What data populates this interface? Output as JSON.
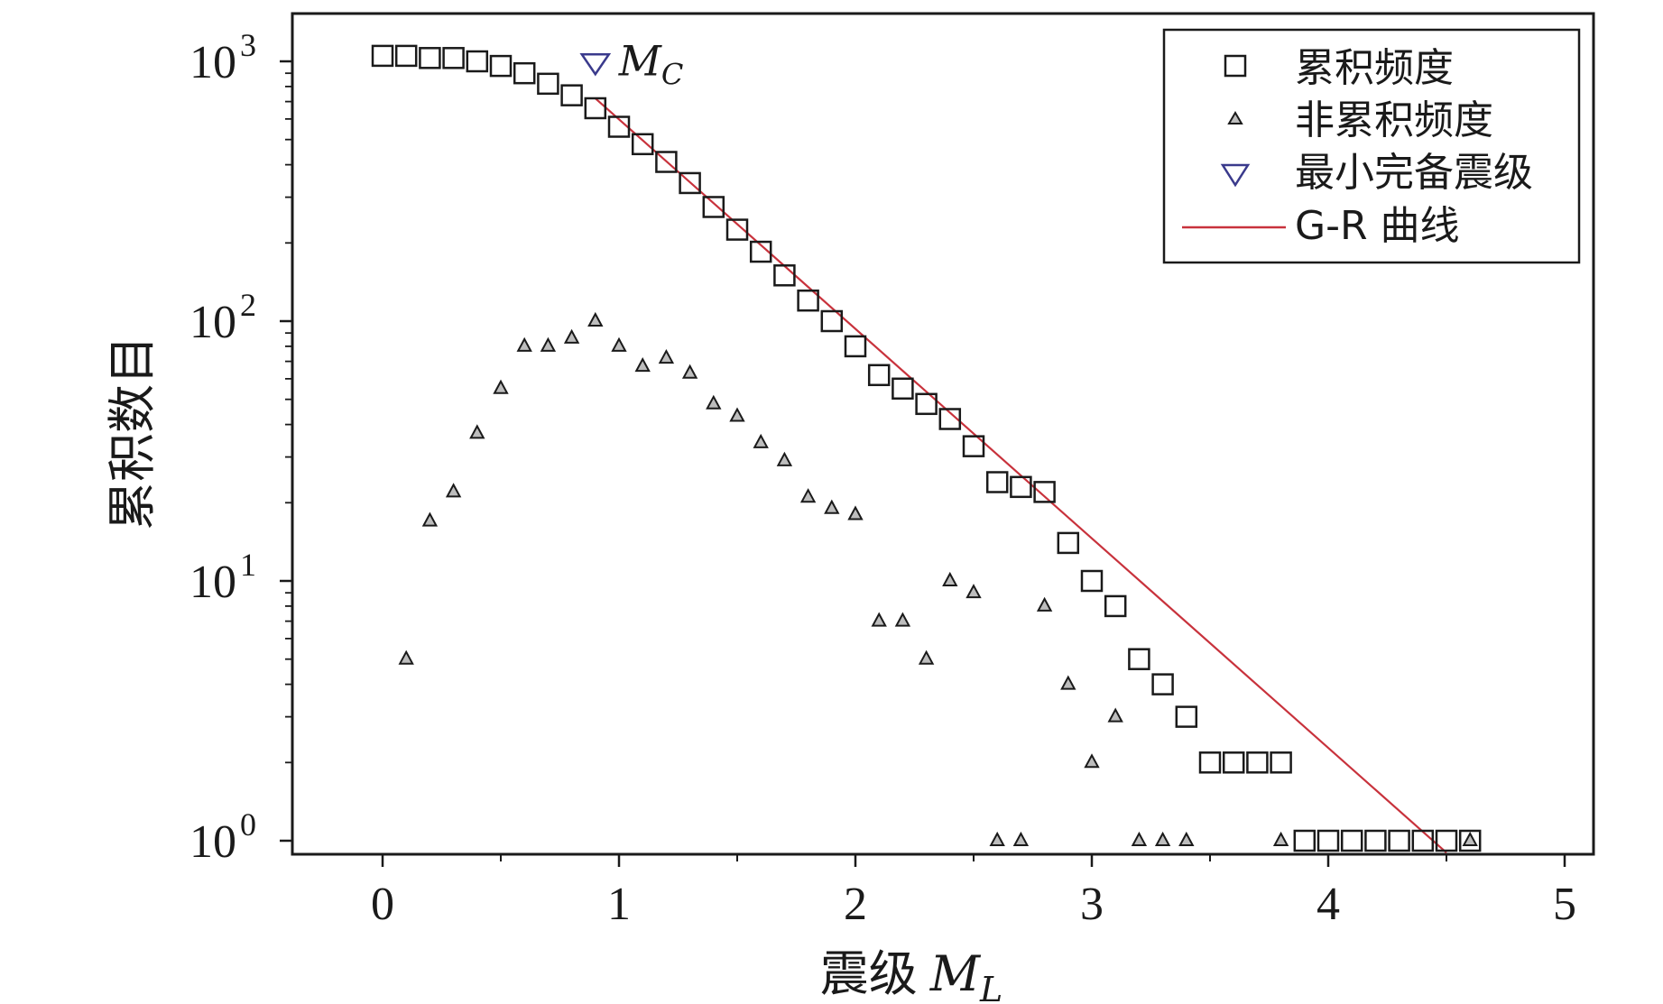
{
  "chart_data": {
    "type": "scatter",
    "y_scale": "log10",
    "xlim": [
      -0.4,
      5.1
    ],
    "ylim": [
      0.9,
      1700
    ],
    "x_ticks": [
      0,
      1,
      2,
      3,
      4,
      5
    ],
    "y_ticks": [
      1,
      10,
      100,
      1000
    ],
    "y_tick_labels": [
      {
        "base": "10",
        "exp": "0"
      },
      {
        "base": "10",
        "exp": "1"
      },
      {
        "base": "10",
        "exp": "2"
      },
      {
        "base": "10",
        "exp": "3"
      }
    ],
    "xlabel": "震级",
    "xlabel_symbol": "M",
    "xlabel_subscript": "L",
    "ylabel": "累积数目",
    "grid": false,
    "legend_position": "top-right",
    "colors": {
      "markers": "#1a1a1a",
      "triangle_fill": "#bdbdbd",
      "mc_marker": "#3a3a8c",
      "gr_line": "#c8323c"
    },
    "series": [
      {
        "name": "累积频度",
        "marker": "square",
        "x": [
          0,
          0.1,
          0.2,
          0.3,
          0.4,
          0.5,
          0.6,
          0.7,
          0.8,
          0.9,
          1.0,
          1.1,
          1.2,
          1.3,
          1.4,
          1.5,
          1.6,
          1.7,
          1.8,
          1.9,
          2.0,
          2.1,
          2.2,
          2.3,
          2.4,
          2.5,
          2.6,
          2.7,
          2.8,
          2.9,
          3.0,
          3.1,
          3.2,
          3.3,
          3.4,
          3.5,
          3.6,
          3.7,
          3.8,
          3.9,
          4.0,
          4.1,
          4.2,
          4.3,
          4.4,
          4.5,
          4.6
        ],
        "y": [
          1050,
          1050,
          1030,
          1030,
          1000,
          960,
          900,
          820,
          740,
          660,
          560,
          480,
          410,
          340,
          275,
          225,
          185,
          150,
          120,
          100,
          80,
          62,
          55,
          48,
          42,
          33,
          24,
          23,
          22,
          14,
          10,
          8,
          5,
          4,
          3,
          2,
          2,
          2,
          2,
          1,
          1,
          1,
          1,
          1,
          1,
          1,
          1
        ]
      },
      {
        "name": "非累积频度",
        "marker": "triangle",
        "x": [
          0.1,
          0.2,
          0.3,
          0.4,
          0.5,
          0.6,
          0.7,
          0.8,
          0.9,
          1.0,
          1.1,
          1.2,
          1.3,
          1.4,
          1.5,
          1.6,
          1.7,
          1.8,
          1.9,
          2.0,
          2.1,
          2.2,
          2.3,
          2.4,
          2.5,
          2.6,
          2.7,
          2.8,
          2.9,
          3.0,
          3.1,
          3.2,
          3.3,
          3.4,
          3.8,
          4.6
        ],
        "y": [
          5,
          17,
          22,
          37,
          55,
          80,
          80,
          86,
          100,
          80,
          67,
          72,
          63,
          48,
          43,
          34,
          29,
          21,
          19,
          18,
          7,
          7,
          5,
          10,
          9,
          1,
          1,
          8,
          4,
          2,
          3,
          1,
          1,
          1,
          1,
          1
        ]
      },
      {
        "name": "最小完备震级",
        "marker": "triangle-down",
        "x": [
          0.9
        ],
        "y": [
          990
        ],
        "annotation_symbol": "M",
        "annotation_subscript": "C"
      },
      {
        "name": "G-R 曲线",
        "marker": "line",
        "x": [
          0.9,
          4.5
        ],
        "y": [
          720,
          0.9
        ]
      }
    ]
  }
}
